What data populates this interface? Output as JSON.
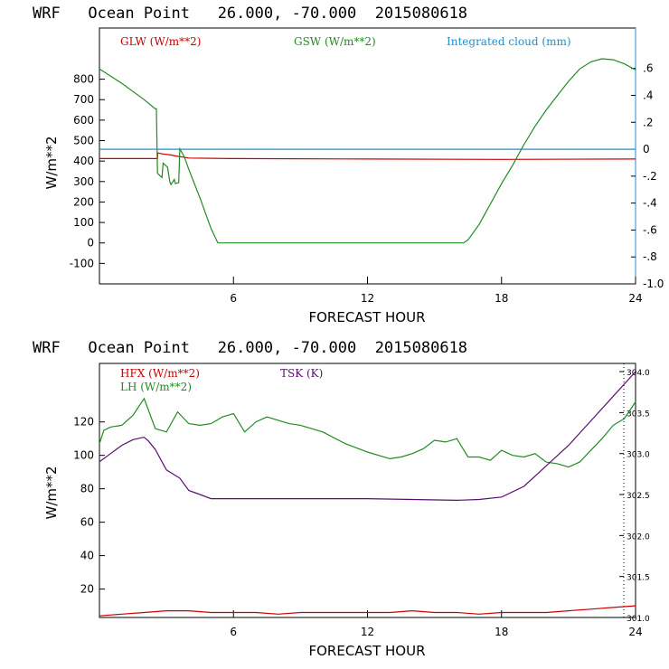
{
  "chart_data": [
    {
      "type": "line",
      "title": "WRF   Ocean Point   26.000, -70.000  2015080618",
      "xlabel": "FORECAST HOUR",
      "ylabel": "W/m**2",
      "xlim": [
        0,
        24
      ],
      "ylim": [
        -200,
        1050
      ],
      "y2lim": [
        -1.0,
        0.9
      ],
      "x_ticks": [
        "6",
        "12",
        "18",
        "24"
      ],
      "y_ticks": [
        "800",
        "700",
        "600",
        "500",
        "400",
        "300",
        "200",
        "100",
        "0",
        "-100"
      ],
      "y2_ticks": [
        ".6",
        ".4",
        ".2",
        "0",
        "-.2",
        "-.4",
        "-.6",
        "-.8",
        "-1.0"
      ],
      "series": [
        {
          "name": "GLW (W/m**2)",
          "color": "#cc0000",
          "axis": "left",
          "x": [
            0,
            2.6,
            2.61,
            2.8,
            3.2,
            3.4,
            4,
            6,
            12,
            18,
            24
          ],
          "values": [
            412,
            412,
            440,
            435,
            430,
            425,
            415,
            412,
            410,
            408,
            410
          ]
        },
        {
          "name": "GSW (W/m**2)",
          "color": "#228b22",
          "axis": "left",
          "x": [
            0,
            0.5,
            1,
            1.5,
            2,
            2.5,
            2.55,
            2.6,
            2.8,
            2.85,
            3.05,
            3.15,
            3.2,
            3.35,
            3.4,
            3.55,
            3.6,
            3.8,
            4,
            4.5,
            5,
            5.3,
            12,
            16.3,
            16.5,
            17,
            17.5,
            18,
            18.5,
            19,
            19.5,
            20,
            20.5,
            21,
            21.5,
            22,
            22.5,
            23,
            23.5,
            24
          ],
          "values": [
            850,
            815,
            780,
            740,
            700,
            655,
            655,
            340,
            320,
            390,
            370,
            300,
            285,
            310,
            290,
            295,
            460,
            420,
            360,
            220,
            70,
            0,
            0,
            0,
            15,
            90,
            190,
            290,
            380,
            480,
            570,
            650,
            720,
            790,
            850,
            885,
            900,
            895,
            875,
            845
          ]
        },
        {
          "name": "Integrated cloud (mm)",
          "color": "#1e90d0",
          "axis": "right",
          "x": [
            0,
            24
          ],
          "values": [
            0.0,
            0.0
          ]
        }
      ]
    },
    {
      "type": "line",
      "title": "WRF   Ocean Point   26.000, -70.000  2015080618",
      "xlabel": "FORECAST HOUR",
      "ylabel": "W/m**2",
      "xlim": [
        0,
        24
      ],
      "ylim": [
        3,
        155
      ],
      "y2lim": [
        301.0,
        304.1
      ],
      "x_ticks": [
        "6",
        "12",
        "18",
        "24"
      ],
      "y_ticks": [
        "120",
        "100",
        "80",
        "60",
        "40",
        "20"
      ],
      "y2_ticks": [
        "304.0",
        "303.5",
        "303.0",
        "302.5",
        "302.0",
        "301.5",
        "301.0"
      ],
      "series": [
        {
          "name": "HFX (W/m**2)",
          "color": "#cc0000",
          "axis": "left",
          "x": [
            0,
            1,
            2,
            3,
            4,
            5,
            6,
            7,
            8,
            9,
            10,
            11,
            12,
            13,
            14,
            15,
            16,
            17,
            18,
            19,
            20,
            21,
            22,
            23,
            24
          ],
          "values": [
            4,
            5,
            6,
            7,
            7,
            6,
            6,
            6,
            5,
            6,
            6,
            6,
            6,
            6,
            7,
            6,
            6,
            5,
            6,
            6,
            6,
            7,
            8,
            9,
            10
          ]
        },
        {
          "name": "LH  (W/m**2)",
          "color": "#228b22",
          "axis": "left",
          "x": [
            0,
            0.2,
            0.5,
            1,
            1.5,
            2,
            2.5,
            3,
            3.5,
            4,
            4.5,
            5,
            5.5,
            6,
            6.5,
            7,
            7.5,
            8,
            8.5,
            9,
            10,
            11,
            12,
            13,
            13.5,
            14,
            14.5,
            15,
            15.5,
            16,
            16.5,
            17,
            17.5,
            18,
            18.5,
            19,
            19.5,
            20,
            20.5,
            21,
            21.5,
            22,
            22.5,
            23,
            23.5,
            24
          ],
          "values": [
            107,
            115,
            117,
            118,
            124,
            134,
            116,
            114,
            126,
            119,
            118,
            119,
            123,
            125,
            114,
            120,
            123,
            121,
            119,
            118,
            114,
            107,
            102,
            98,
            99,
            101,
            104,
            109,
            108,
            110,
            99,
            99,
            97,
            103,
            100,
            99,
            101,
            96,
            95,
            93,
            96,
            103,
            110,
            118,
            122,
            132
          ]
        },
        {
          "name": "TSK (K)",
          "color": "#5a0f6e",
          "axis": "right",
          "x": [
            0,
            0.5,
            1,
            1.5,
            2,
            2.2,
            2.5,
            3,
            3.3,
            3.6,
            4,
            4.5,
            5,
            6,
            8,
            10,
            12,
            14,
            16,
            17,
            18,
            19,
            20,
            21,
            22,
            23,
            24
          ],
          "values": [
            302.9,
            303.0,
            303.1,
            303.17,
            303.2,
            303.15,
            303.05,
            302.8,
            302.75,
            302.7,
            302.55,
            302.5,
            302.45,
            302.45,
            302.45,
            302.45,
            302.45,
            302.44,
            302.43,
            302.44,
            302.47,
            302.6,
            302.85,
            303.1,
            303.4,
            303.7,
            304.0
          ]
        }
      ]
    }
  ]
}
